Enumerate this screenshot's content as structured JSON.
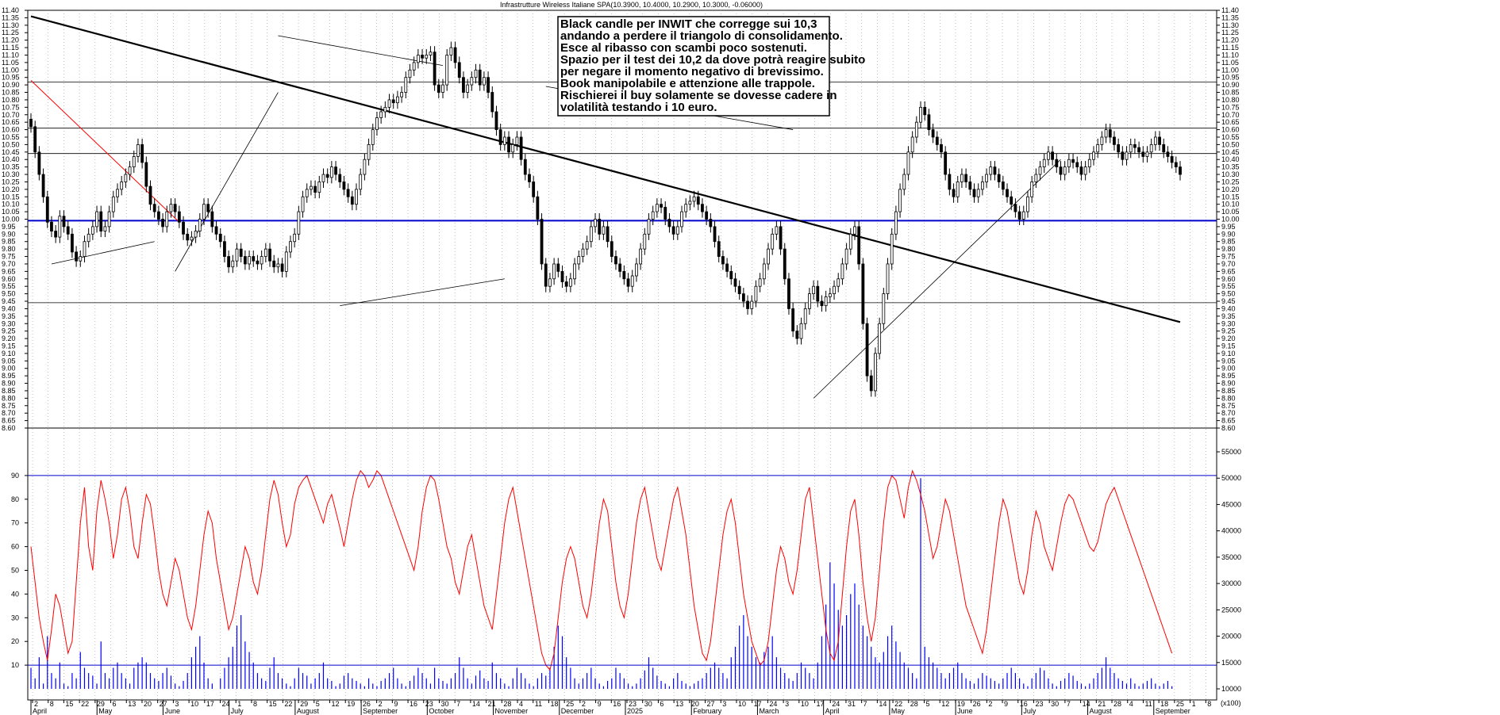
{
  "title": "Infrastrutture Wireless  Italiane SPA(10.3900, 10.4000, 10.2900, 10.3000, -0.06000)",
  "annotation": [
    "Black candle per INWIT che corregge sui 10,3",
    "andando a perdere il triangolo di consolidamento.",
    "Esce al ribasso con scambi poco sostenuti.",
    "Spazio per il test dei 10,2 da dove potrà reagire subito",
    "per negare il momento negativo di brevissimo.",
    "Book manipolabile e attenzione alle trappole.",
    "Rischierei il buy solamente se dovesse cadere in",
    "volatilità testando i 10 euro."
  ],
  "x_day_labels": [
    "2",
    "8",
    "15",
    "22",
    "29",
    "6",
    "13",
    "20",
    "27",
    "3",
    "10",
    "17",
    "24",
    "1",
    "8",
    "15",
    "22",
    "29",
    "5",
    "12",
    "19",
    "26",
    "2",
    "9",
    "16",
    "23",
    "30",
    "7",
    "14",
    "21",
    "28",
    "4",
    "11",
    "18",
    "25",
    "2",
    "9",
    "16",
    "23",
    "30",
    "6",
    "13",
    "20",
    "27",
    "3",
    "10",
    "17",
    "24",
    "3",
    "10",
    "17",
    "24",
    "31",
    "7",
    "14",
    "22",
    "28",
    "5",
    "12",
    "19",
    "26",
    "2",
    "9",
    "16",
    "23",
    "30",
    "7",
    "14",
    "21",
    "28",
    "4",
    "11",
    "18",
    "25",
    "1",
    "8"
  ],
  "x_month_labels": [
    "April",
    "May",
    "June",
    "July",
    "August",
    "September",
    "October",
    "November",
    "December",
    "2025",
    "February",
    "March",
    "April",
    "May",
    "June",
    "July",
    "August",
    "September"
  ],
  "oscillator_axis_note": "(x100)",
  "colors": {
    "up": "#ffffff",
    "down": "#000000",
    "stoch": "#ff0000",
    "volume": "#0000ff",
    "hline_blue": "#0000cc",
    "trend_red": "#ff0000"
  },
  "chart_data": {
    "type": "candlestick",
    "price_axis": {
      "min": 8.6,
      "max": 11.4,
      "step": 0.05,
      "major": 0.05
    },
    "oscillator_axis": {
      "min": 0,
      "max": 100,
      "ticks": [
        10,
        20,
        30,
        40,
        50,
        60,
        70,
        80,
        90
      ],
      "overbought": 90,
      "oversold": 10
    },
    "volume_axis": {
      "min": 10000,
      "max": 55000,
      "ticks": [
        10000,
        15000,
        20000,
        25000,
        30000,
        35000,
        40000,
        45000,
        50000,
        55000
      ]
    },
    "horizontal_levels": [
      10.92,
      10.61,
      10.44,
      9.99,
      9.44
    ],
    "blue_level": 9.99,
    "closes": [
      10.62,
      10.45,
      10.3,
      10.15,
      9.98,
      9.92,
      9.88,
      10.02,
      9.95,
      9.9,
      9.78,
      9.72,
      9.75,
      9.85,
      9.9,
      9.95,
      10.05,
      9.92,
      9.95,
      10.05,
      10.15,
      10.2,
      10.25,
      10.3,
      10.35,
      10.42,
      10.5,
      10.38,
      10.22,
      10.1,
      10.05,
      10.0,
      9.95,
      10.05,
      10.1,
      10.05,
      9.98,
      9.9,
      9.86,
      9.88,
      9.92,
      10.0,
      10.1,
      10.05,
      9.95,
      9.9,
      9.85,
      9.75,
      9.68,
      9.72,
      9.8,
      9.75,
      9.7,
      9.75,
      9.72,
      9.7,
      9.75,
      9.8,
      9.72,
      9.68,
      9.7,
      9.65,
      9.78,
      9.85,
      9.9,
      10.05,
      10.15,
      10.2,
      10.22,
      10.18,
      10.25,
      10.3,
      10.28,
      10.35,
      10.3,
      10.25,
      10.2,
      10.15,
      10.1,
      10.2,
      10.3,
      10.4,
      10.5,
      10.6,
      10.68,
      10.72,
      10.75,
      10.8,
      10.78,
      10.82,
      10.85,
      10.95,
      11.0,
      11.05,
      11.1,
      11.08,
      11.1,
      11.12,
      10.9,
      10.85,
      10.9,
      11.1,
      11.15,
      11.05,
      10.95,
      10.85,
      10.9,
      10.95,
      11.0,
      10.9,
      10.95,
      10.85,
      10.72,
      10.6,
      10.5,
      10.55,
      10.45,
      10.5,
      10.55,
      10.4,
      10.3,
      10.25,
      10.15,
      10.0,
      9.7,
      9.55,
      9.6,
      9.7,
      9.65,
      9.58,
      9.55,
      9.6,
      9.7,
      9.75,
      9.8,
      9.85,
      9.95,
      10.0,
      9.9,
      9.95,
      9.85,
      9.75,
      9.7,
      9.65,
      9.6,
      9.55,
      9.62,
      9.7,
      9.8,
      9.9,
      10.0,
      10.05,
      10.1,
      10.08,
      10.0,
      9.95,
      9.9,
      9.95,
      10.05,
      10.1,
      10.12,
      10.15,
      10.1,
      10.05,
      10.0,
      9.95,
      9.85,
      9.75,
      9.7,
      9.65,
      9.6,
      9.55,
      9.5,
      9.45,
      9.4,
      9.45,
      9.55,
      9.6,
      9.7,
      9.8,
      9.9,
      9.95,
      9.8,
      9.6,
      9.4,
      9.25,
      9.2,
      9.3,
      9.4,
      9.5,
      9.55,
      9.45,
      9.42,
      9.48,
      9.5,
      9.55,
      9.6,
      9.7,
      9.8,
      9.9,
      9.95,
      9.7,
      9.3,
      8.95,
      8.85,
      9.1,
      9.3,
      9.5,
      9.7,
      9.9,
      10.05,
      10.2,
      10.3,
      10.45,
      10.55,
      10.65,
      10.75,
      10.7,
      10.6,
      10.55,
      10.5,
      10.45,
      10.3,
      10.2,
      10.15,
      10.25,
      10.3,
      10.25,
      10.2,
      10.15,
      10.2,
      10.25,
      10.3,
      10.35,
      10.3,
      10.25,
      10.2,
      10.15,
      10.1,
      10.05,
      10.0,
      10.05,
      10.15,
      10.25,
      10.3,
      10.35,
      10.4,
      10.45,
      10.4,
      10.35,
      10.3,
      10.35,
      10.4,
      10.38,
      10.35,
      10.3,
      10.35,
      10.4,
      10.45,
      10.5,
      10.55,
      10.6,
      10.55,
      10.5,
      10.45,
      10.4,
      10.45,
      10.5,
      10.48,
      10.45,
      10.42,
      10.45,
      10.5,
      10.55,
      10.5,
      10.45,
      10.42,
      10.38,
      10.35,
      10.3
    ],
    "stochastic": [
      60,
      45,
      30,
      20,
      12,
      25,
      40,
      35,
      25,
      15,
      20,
      45,
      70,
      85,
      60,
      50,
      75,
      88,
      80,
      70,
      55,
      65,
      80,
      85,
      75,
      60,
      55,
      70,
      82,
      78,
      65,
      50,
      40,
      35,
      45,
      55,
      50,
      40,
      30,
      25,
      35,
      50,
      65,
      75,
      70,
      55,
      45,
      35,
      25,
      30,
      40,
      50,
      60,
      55,
      45,
      40,
      50,
      65,
      80,
      88,
      82,
      70,
      60,
      65,
      78,
      85,
      88,
      90,
      85,
      80,
      75,
      70,
      78,
      82,
      75,
      68,
      60,
      70,
      80,
      88,
      92,
      90,
      85,
      88,
      92,
      90,
      85,
      80,
      75,
      70,
      65,
      60,
      55,
      50,
      60,
      75,
      85,
      90,
      88,
      80,
      70,
      60,
      55,
      45,
      40,
      50,
      60,
      65,
      55,
      45,
      35,
      30,
      25,
      40,
      55,
      70,
      80,
      85,
      75,
      65,
      55,
      45,
      35,
      25,
      15,
      10,
      8,
      15,
      30,
      45,
      55,
      60,
      55,
      45,
      35,
      30,
      40,
      55,
      70,
      80,
      75,
      60,
      45,
      35,
      30,
      40,
      55,
      70,
      80,
      85,
      75,
      65,
      55,
      50,
      60,
      70,
      80,
      85,
      75,
      65,
      50,
      35,
      25,
      15,
      12,
      20,
      35,
      50,
      65,
      75,
      80,
      70,
      55,
      40,
      30,
      20,
      15,
      10,
      12,
      20,
      35,
      50,
      60,
      55,
      45,
      40,
      50,
      65,
      80,
      85,
      70,
      55,
      40,
      25,
      15,
      12,
      20,
      40,
      60,
      75,
      80,
      65,
      45,
      30,
      20,
      30,
      50,
      70,
      85,
      90,
      88,
      80,
      72,
      85,
      92,
      88,
      82,
      75,
      65,
      55,
      60,
      70,
      80,
      75,
      65,
      55,
      45,
      35,
      30,
      25,
      20,
      15,
      25,
      40,
      55,
      70,
      80,
      75,
      65,
      55,
      45,
      40,
      50,
      65,
      75,
      70,
      60,
      55,
      50,
      60,
      70,
      78,
      82,
      80,
      75,
      70,
      65,
      60,
      58,
      62,
      70,
      78,
      82,
      85,
      80,
      75,
      70,
      65,
      60,
      55,
      50,
      45,
      40,
      35,
      30,
      25,
      20,
      15
    ],
    "volumes": [
      14000,
      12000,
      16000,
      11000,
      20000,
      13000,
      12000,
      15000,
      11000,
      10500,
      13000,
      12000,
      17000,
      14000,
      13000,
      12500,
      11000,
      19000,
      13000,
      12000,
      14000,
      15000,
      13000,
      12000,
      11000,
      14000,
      15000,
      16000,
      15000,
      13000,
      12000,
      11500,
      13000,
      14000,
      12500,
      11000,
      10500,
      11500,
      13000,
      16000,
      18000,
      20000,
      15000,
      12000,
      11000,
      10000,
      12000,
      14000,
      16000,
      18000,
      22000,
      24000,
      19000,
      17000,
      15000,
      13000,
      12000,
      11500,
      14000,
      16000,
      13000,
      12000,
      11000,
      10500,
      12000,
      14000,
      13000,
      12500,
      11000,
      12000,
      13000,
      15000,
      12000,
      11500,
      10500,
      11000,
      12500,
      13000,
      12000,
      11500,
      11000,
      10500,
      12000,
      11000,
      10500,
      11500,
      12000,
      13000,
      14000,
      12000,
      11000,
      10500,
      11500,
      12500,
      14000,
      13000,
      12000,
      11000,
      14000,
      12000,
      11500,
      11000,
      12000,
      13000,
      16000,
      14000,
      12000,
      11000,
      12500,
      13500,
      12000,
      11500,
      15000,
      13000,
      12000,
      11000,
      10500,
      12000,
      14000,
      13000,
      12000,
      11000,
      10500,
      12000,
      13000,
      12500,
      14000,
      18000,
      22000,
      20000,
      16000,
      14000,
      12000,
      11000,
      12000,
      13000,
      14000,
      12000,
      11000,
      10500,
      11500,
      12000,
      14000,
      13000,
      12000,
      11000,
      10500,
      11000,
      12000,
      13500,
      16000,
      14000,
      12500,
      11500,
      11000,
      10500,
      12000,
      13000,
      11500,
      11000,
      10500,
      11000,
      11500,
      12000,
      13000,
      14000,
      15000,
      14000,
      13000,
      12000,
      16000,
      18000,
      22000,
      24000,
      20000,
      18000,
      16000,
      15000,
      17000,
      18000,
      20000,
      16000,
      14000,
      13000,
      12000,
      11500,
      13000,
      15000,
      14000,
      13000,
      12000,
      15000,
      20000,
      26000,
      34000,
      30000,
      25000,
      22000,
      24000,
      28000,
      30000,
      26000,
      22000,
      20000,
      18000,
      16000,
      15000,
      17000,
      20000,
      22000,
      19000,
      17000,
      15000,
      14000,
      13000,
      12000,
      50000,
      18000,
      16000,
      15000,
      14000,
      13000,
      12000,
      13000,
      14000,
      15000,
      13000,
      12000,
      11500,
      11000,
      12000,
      13000,
      12500,
      12000,
      11500,
      11000,
      12000,
      13000,
      14000,
      13000,
      12000,
      11000,
      10500,
      12000,
      13000,
      14000,
      13500,
      12000,
      11000,
      10500,
      11500,
      12000,
      13000,
      12500,
      11500,
      11000,
      10500,
      11000,
      12000,
      13000,
      14000,
      16000,
      14000,
      13000,
      12000,
      11500,
      11000,
      12000,
      11000,
      10500,
      11000,
      11500,
      12000,
      11000,
      10500,
      11000,
      11500,
      10500
    ]
  }
}
